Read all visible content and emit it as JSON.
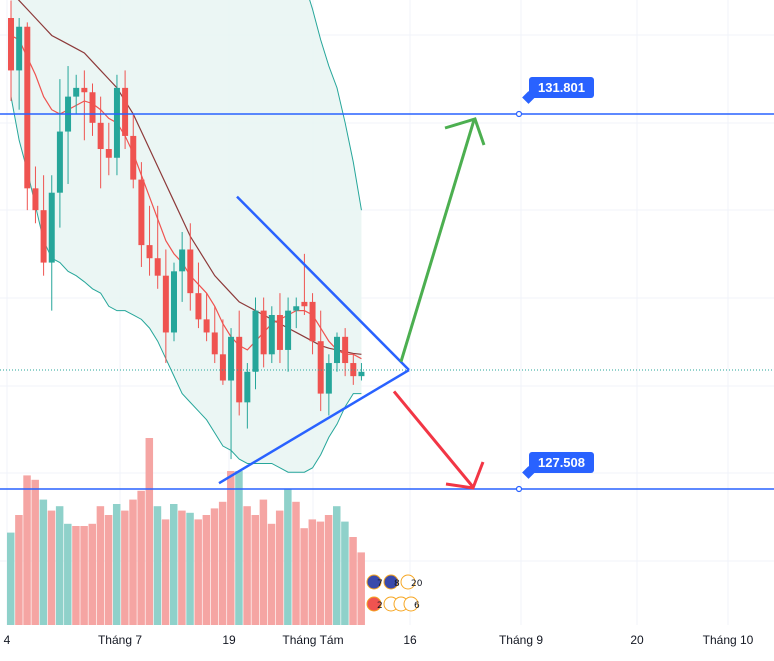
{
  "chart_data": {
    "type": "candlestick",
    "title": "",
    "xlabel": "",
    "ylabel": "",
    "x_ticks": [
      "4",
      "Tháng 7",
      "19",
      "Tháng Tám",
      "16",
      "Tháng 9",
      "20",
      "Tháng 10"
    ],
    "price_levels": [
      {
        "label": "131.801",
        "value": 131.801
      },
      {
        "label": "127.508",
        "value": 127.508
      }
    ],
    "candles": [
      [
        132.9,
        133.1,
        131.95,
        132.3,
        "down"
      ],
      [
        132.3,
        132.9,
        131.85,
        132.8,
        "up"
      ],
      [
        132.8,
        132.85,
        130.7,
        130.95,
        "down"
      ],
      [
        130.95,
        131.2,
        130.55,
        130.7,
        "down"
      ],
      [
        130.7,
        131.1,
        129.95,
        130.1,
        "down"
      ],
      [
        130.1,
        131.1,
        129.55,
        130.9,
        "up"
      ],
      [
        130.9,
        132.2,
        130.5,
        131.6,
        "up"
      ],
      [
        131.6,
        132.35,
        131.0,
        132.0,
        "up"
      ],
      [
        132.0,
        132.25,
        131.8,
        132.1,
        "up"
      ],
      [
        132.1,
        132.3,
        131.5,
        132.05,
        "down"
      ],
      [
        132.05,
        132.15,
        131.55,
        131.7,
        "down"
      ],
      [
        131.7,
        132.0,
        130.95,
        131.4,
        "down"
      ],
      [
        131.4,
        131.7,
        131.1,
        131.3,
        "down"
      ],
      [
        131.3,
        132.25,
        131.1,
        132.1,
        "up"
      ],
      [
        132.1,
        132.3,
        131.4,
        131.55,
        "down"
      ],
      [
        131.55,
        131.8,
        130.95,
        131.05,
        "down"
      ],
      [
        131.05,
        131.25,
        130.05,
        130.3,
        "down"
      ],
      [
        130.3,
        130.75,
        129.95,
        130.15,
        "down"
      ],
      [
        130.15,
        130.75,
        129.8,
        129.95,
        "down"
      ],
      [
        129.95,
        130.25,
        128.95,
        129.3,
        "down"
      ],
      [
        129.3,
        130.1,
        129.2,
        130.0,
        "up"
      ],
      [
        130.0,
        130.45,
        129.65,
        130.25,
        "up"
      ],
      [
        130.25,
        130.55,
        129.55,
        129.75,
        "down"
      ],
      [
        129.75,
        130.1,
        129.35,
        129.45,
        "down"
      ],
      [
        129.45,
        129.75,
        129.2,
        129.3,
        "down"
      ],
      [
        129.3,
        129.6,
        128.95,
        129.05,
        "down"
      ],
      [
        129.05,
        129.45,
        128.7,
        128.75,
        "down"
      ],
      [
        128.75,
        129.35,
        127.85,
        129.25,
        "up"
      ],
      [
        129.25,
        129.55,
        128.35,
        128.5,
        "down"
      ],
      [
        128.5,
        128.95,
        128.2,
        128.85,
        "up"
      ],
      [
        128.85,
        129.7,
        128.65,
        129.55,
        "up"
      ],
      [
        129.55,
        129.7,
        128.9,
        129.05,
        "down"
      ],
      [
        129.05,
        129.6,
        128.95,
        129.5,
        "up"
      ],
      [
        129.5,
        129.75,
        128.95,
        129.1,
        "down"
      ],
      [
        129.1,
        129.7,
        128.85,
        129.55,
        "up"
      ],
      [
        129.55,
        129.7,
        129.35,
        129.6,
        "up"
      ],
      [
        129.6,
        130.2,
        129.5,
        129.65,
        "down"
      ],
      [
        129.65,
        129.75,
        129.05,
        129.2,
        "down"
      ],
      [
        129.2,
        129.55,
        128.4,
        128.6,
        "down"
      ],
      [
        128.6,
        129.05,
        128.35,
        128.95,
        "up"
      ],
      [
        128.95,
        129.3,
        128.85,
        129.25,
        "up"
      ],
      [
        129.25,
        129.35,
        128.8,
        128.95,
        "down"
      ],
      [
        128.95,
        129.05,
        128.7,
        128.8,
        "down"
      ],
      [
        128.8,
        128.95,
        128.75,
        128.85,
        "up"
      ]
    ],
    "volumes": [
      [
        0.42,
        "up"
      ],
      [
        0.5,
        "down"
      ],
      [
        0.68,
        "down"
      ],
      [
        0.66,
        "down"
      ],
      [
        0.57,
        "up"
      ],
      [
        0.52,
        "down"
      ],
      [
        0.54,
        "up"
      ],
      [
        0.46,
        "up"
      ],
      [
        0.45,
        "down"
      ],
      [
        0.45,
        "down"
      ],
      [
        0.46,
        "down"
      ],
      [
        0.54,
        "down"
      ],
      [
        0.5,
        "down"
      ],
      [
        0.55,
        "up"
      ],
      [
        0.52,
        "down"
      ],
      [
        0.57,
        "down"
      ],
      [
        0.61,
        "down"
      ],
      [
        0.85,
        "down"
      ],
      [
        0.54,
        "up"
      ],
      [
        0.48,
        "down"
      ],
      [
        0.55,
        "up"
      ],
      [
        0.52,
        "down"
      ],
      [
        0.51,
        "up"
      ],
      [
        0.48,
        "down"
      ],
      [
        0.5,
        "down"
      ],
      [
        0.53,
        "down"
      ],
      [
        0.56,
        "down"
      ],
      [
        0.7,
        "down"
      ],
      [
        0.7,
        "up"
      ],
      [
        0.54,
        "down"
      ],
      [
        0.5,
        "down"
      ],
      [
        0.57,
        "down"
      ],
      [
        0.46,
        "down"
      ],
      [
        0.52,
        "down"
      ],
      [
        0.62,
        "up"
      ],
      [
        0.56,
        "down"
      ],
      [
        0.44,
        "down"
      ],
      [
        0.48,
        "down"
      ],
      [
        0.47,
        "down"
      ],
      [
        0.5,
        "down"
      ],
      [
        0.54,
        "up"
      ],
      [
        0.47,
        "up"
      ],
      [
        0.4,
        "down"
      ],
      [
        0.33,
        "down"
      ]
    ],
    "moving_averages": {
      "fast": [
        132.7,
        132.65,
        132.45,
        132.25,
        132.0,
        131.85,
        131.8,
        131.85,
        131.9,
        131.95,
        131.92,
        131.85,
        131.75,
        131.7,
        131.55,
        131.35,
        131.1,
        130.85,
        130.6,
        130.35,
        130.2,
        130.1,
        129.95,
        129.85,
        129.75,
        129.6,
        129.4,
        129.25,
        129.15,
        129.1,
        129.2,
        129.3,
        129.4,
        129.45,
        129.5,
        129.55,
        129.55,
        129.5,
        129.35,
        129.2,
        129.1,
        129.05,
        129.05,
        129.0
      ],
      "slow": [
        133.2,
        133.1,
        133.0,
        132.9,
        132.8,
        132.7,
        132.65,
        132.6,
        132.55,
        132.5,
        132.4,
        132.3,
        132.2,
        132.1,
        131.95,
        131.8,
        131.6,
        131.4,
        131.2,
        131.0,
        130.8,
        130.6,
        130.4,
        130.25,
        130.1,
        129.95,
        129.85,
        129.75,
        129.65,
        129.6,
        129.55,
        129.5,
        129.45,
        129.4,
        129.35,
        129.3,
        129.25,
        129.2,
        129.15,
        129.12,
        129.1,
        129.08,
        129.06,
        129.05
      ]
    },
    "bollinger": {
      "upper": [
        133.4,
        133.45,
        133.45,
        133.4,
        133.4,
        133.35,
        133.25,
        133.2,
        133.2,
        133.2,
        133.25,
        133.25,
        133.3,
        133.3,
        133.3,
        133.3,
        133.3,
        133.3,
        133.3,
        133.3,
        133.3,
        133.3,
        133.3,
        133.3,
        133.3,
        133.3,
        133.3,
        133.3,
        133.3,
        133.3,
        133.3,
        133.3,
        133.3,
        133.3,
        133.3,
        133.3,
        133.3,
        133.0,
        132.65,
        132.35,
        132.1,
        131.7,
        131.25,
        130.7
      ],
      "lower": [
        132.0,
        131.5,
        131.15,
        130.75,
        130.35,
        130.15,
        130.1,
        130.0,
        129.95,
        129.88,
        129.8,
        129.75,
        129.6,
        129.55,
        129.55,
        129.5,
        129.45,
        129.35,
        129.2,
        129.0,
        128.8,
        128.6,
        128.5,
        128.4,
        128.3,
        128.15,
        128.0,
        127.95,
        127.85,
        127.8,
        127.8,
        127.8,
        127.8,
        127.75,
        127.7,
        127.7,
        127.7,
        127.75,
        127.9,
        128.1,
        128.25,
        128.45,
        128.6,
        128.6
      ]
    },
    "current_price": 128.87,
    "projection": {
      "triangle_upper": [
        129.95,
        128.87
      ],
      "triangle_lower": [
        127.9,
        128.87
      ],
      "bullish_target": 131.801,
      "bearish_target": 127.508
    },
    "colors": {
      "up": "#26a69a",
      "down": "#ef5350",
      "up_volume": "#8fd1ca",
      "down_volume": "#f5a5a3",
      "levels": "#2962ff",
      "triangle": "#2962ff",
      "bullish_arrow": "#4caf50",
      "bearish_arrow": "#f23645",
      "band_fill": "#e8f4f2",
      "band_line": "#26a69a",
      "fast_ma": "#ef5350",
      "slow_ma": "#8d3a3a"
    },
    "grid": true,
    "indicator_badges": [
      "7",
      "8",
      "20",
      "2",
      "6",
      "3",
      "6"
    ]
  }
}
